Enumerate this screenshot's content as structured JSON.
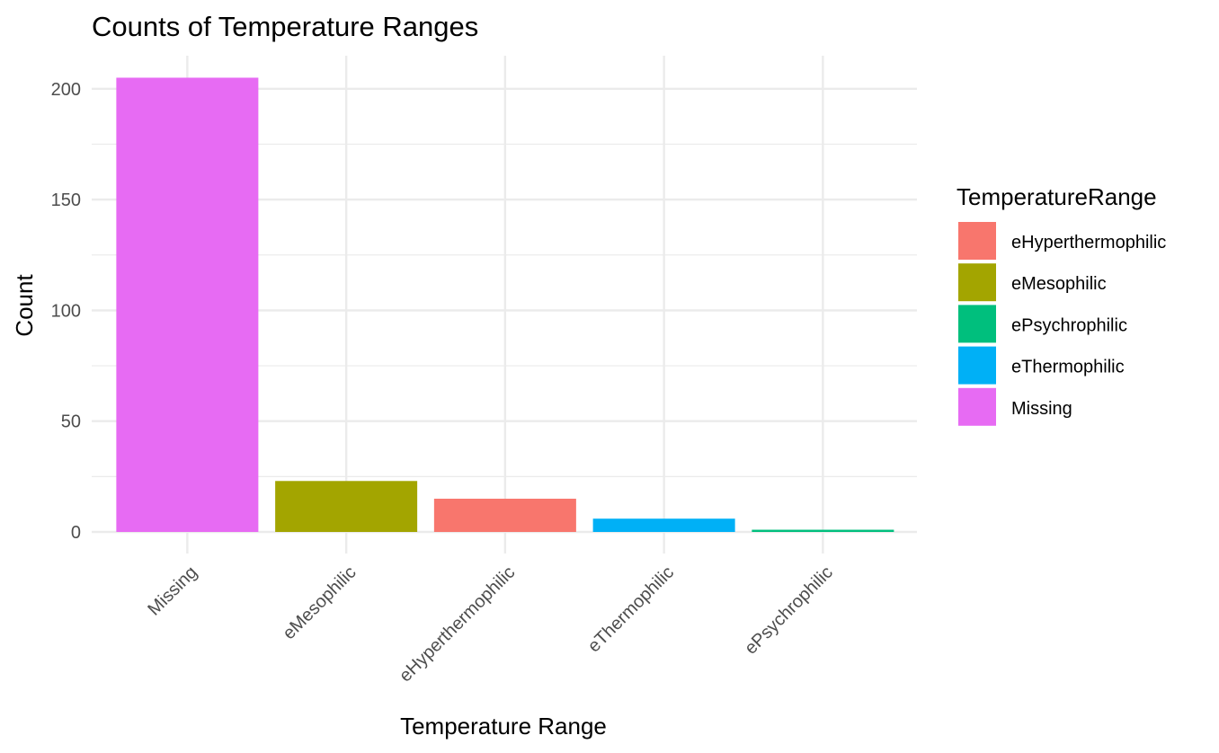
{
  "chart_data": {
    "type": "bar",
    "title": "Counts of Temperature Ranges",
    "xlabel": "Temperature Range",
    "ylabel": "Count",
    "categories": [
      "Missing",
      "eMesophilic",
      "eHyperthermophilic",
      "eThermophilic",
      "ePsychrophilic"
    ],
    "values": [
      205,
      23,
      15,
      6,
      1
    ],
    "ylim": [
      0,
      215
    ],
    "yticks": [
      0,
      50,
      100,
      150,
      200
    ],
    "grid": true,
    "legend": {
      "title": "TemperatureRange",
      "position": "right",
      "entries": [
        {
          "label": "eHyperthermophilic",
          "color": "#F8766D"
        },
        {
          "label": "eMesophilic",
          "color": "#A3A500"
        },
        {
          "label": "ePsychrophilic",
          "color": "#00BF7D"
        },
        {
          "label": "eThermophilic",
          "color": "#00B0F6"
        },
        {
          "label": "Missing",
          "color": "#E76BF3"
        }
      ]
    },
    "category_colors": {
      "Missing": "#E76BF3",
      "eMesophilic": "#A3A500",
      "eHyperthermophilic": "#F8766D",
      "eThermophilic": "#00B0F6",
      "ePsychrophilic": "#00BF7D"
    }
  }
}
